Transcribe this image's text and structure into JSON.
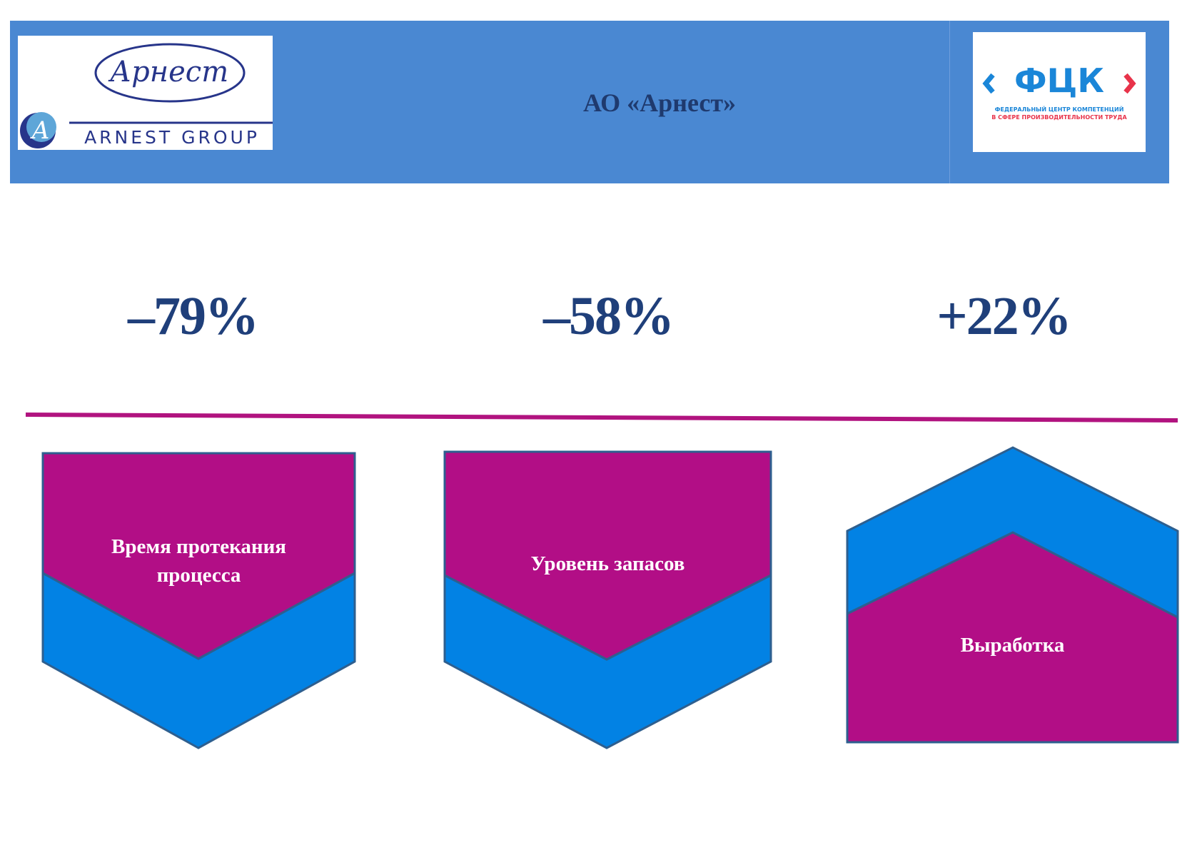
{
  "header": {
    "title": "АО «Арнест»",
    "logo_left": {
      "script_text": "Арнест",
      "group_text": "ARNEST GROUP"
    },
    "logo_right": {
      "mark_text": "ФЦК",
      "line1": "ФЕДЕРАЛЬНЫЙ ЦЕНТР КОМПЕТЕНЦИЙ",
      "line2": "В СФЕРЕ ПРОИЗВОДИТЕЛЬНОСТИ ТРУДА"
    }
  },
  "metrics": [
    {
      "value": "–79%",
      "label": "Время протекания процесса",
      "label_lines": [
        "Время протекания",
        "процесса"
      ],
      "direction": "down"
    },
    {
      "value": "–58%",
      "label": "Уровень запасов",
      "label_lines": [
        "Уровень запасов"
      ],
      "direction": "down"
    },
    {
      "value": "+22%",
      "label": "Выработка",
      "label_lines": [
        "Выработка"
      ],
      "direction": "up"
    }
  ],
  "colors": {
    "header_bg": "#4a88d2",
    "title_text": "#1f3a6e",
    "metric_text": "#1f3f7a",
    "magenta": "#b20e86",
    "blue": "#0282e4",
    "outline": "#2e5f8f",
    "divider": "#b1137f",
    "fck_blue": "#1a86d8",
    "fck_red": "#e8334a"
  }
}
